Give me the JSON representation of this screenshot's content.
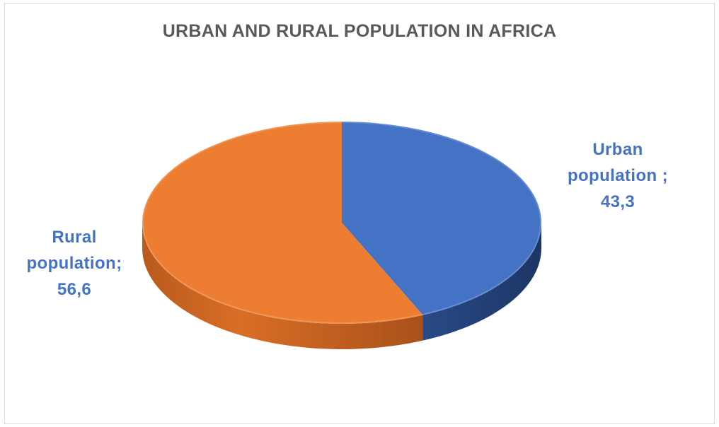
{
  "chart_data": {
    "type": "pie",
    "title": "URBAN AND RURAL POPULATION IN AFRICA",
    "categories": [
      "Urban population",
      "Rural population"
    ],
    "values": [
      43.3,
      56.6
    ],
    "colors": [
      "#4472c4",
      "#ed7d31"
    ],
    "data_labels": [
      {
        "lines": [
          "Urban",
          "population ;",
          "43,3"
        ]
      },
      {
        "lines": [
          "Rural",
          "population;",
          "56,6"
        ]
      }
    ],
    "style": "3d"
  }
}
